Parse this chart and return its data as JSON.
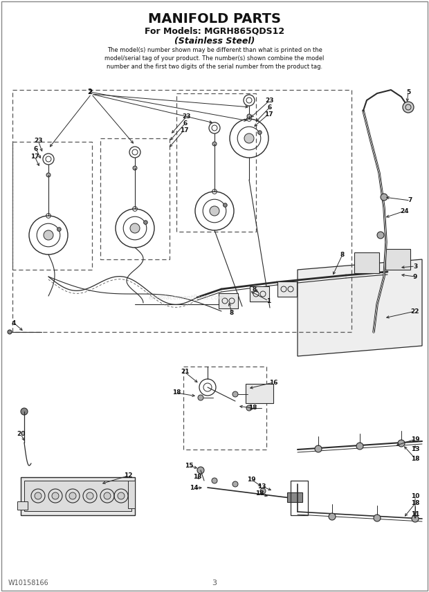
{
  "title": "MANIFOLD PARTS",
  "subtitle1": "For Models: MGRH865QDS12",
  "subtitle2": "(Stainless Steel)",
  "body_text": "The model(s) number shown may be different than what is printed on the\nmodel/serial tag of your product. The number(s) shown combine the model\nnumber and the first two digits of the serial number from the product tag.",
  "footer_left": "W10158166",
  "footer_center": "3",
  "bg_color": "#ffffff",
  "lc": "#2a2a2a",
  "dc": "#3a3a3a",
  "watermark": "eReplacementParts.com"
}
